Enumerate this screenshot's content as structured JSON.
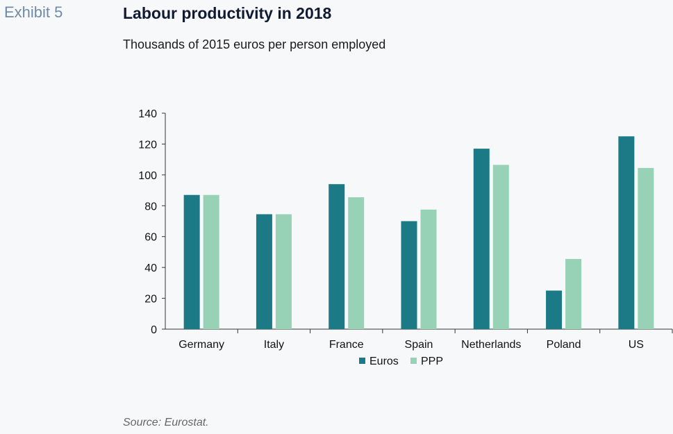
{
  "header": {
    "exhibit": "Exhibit 5"
  },
  "footer": {
    "source": "Source: Eurostat."
  },
  "colors": {
    "euros": "#1b7a86",
    "ppp": "#98d2b6",
    "axis": "#333333",
    "background": "#f7f8fa"
  },
  "chart_data": {
    "type": "bar",
    "title": "Labour productivity in 2018",
    "subtitle": "Thousands of 2015 euros per person employed",
    "xlabel": "",
    "ylabel": "",
    "categories": [
      "Germany",
      "Italy",
      "France",
      "Spain",
      "Netherlands",
      "Poland",
      "US"
    ],
    "series": [
      {
        "name": "Euros",
        "values": [
          87,
          74.5,
          94,
          70,
          117,
          25,
          125
        ]
      },
      {
        "name": "PPP",
        "values": [
          87,
          74.5,
          85.5,
          77.5,
          106.5,
          45.5,
          104.5
        ]
      }
    ],
    "ylim": [
      0,
      140
    ],
    "yticks": [
      "0",
      "20",
      "40",
      "60",
      "80",
      "100",
      "120",
      "140"
    ],
    "grid": false,
    "legend": "bottom-center"
  }
}
